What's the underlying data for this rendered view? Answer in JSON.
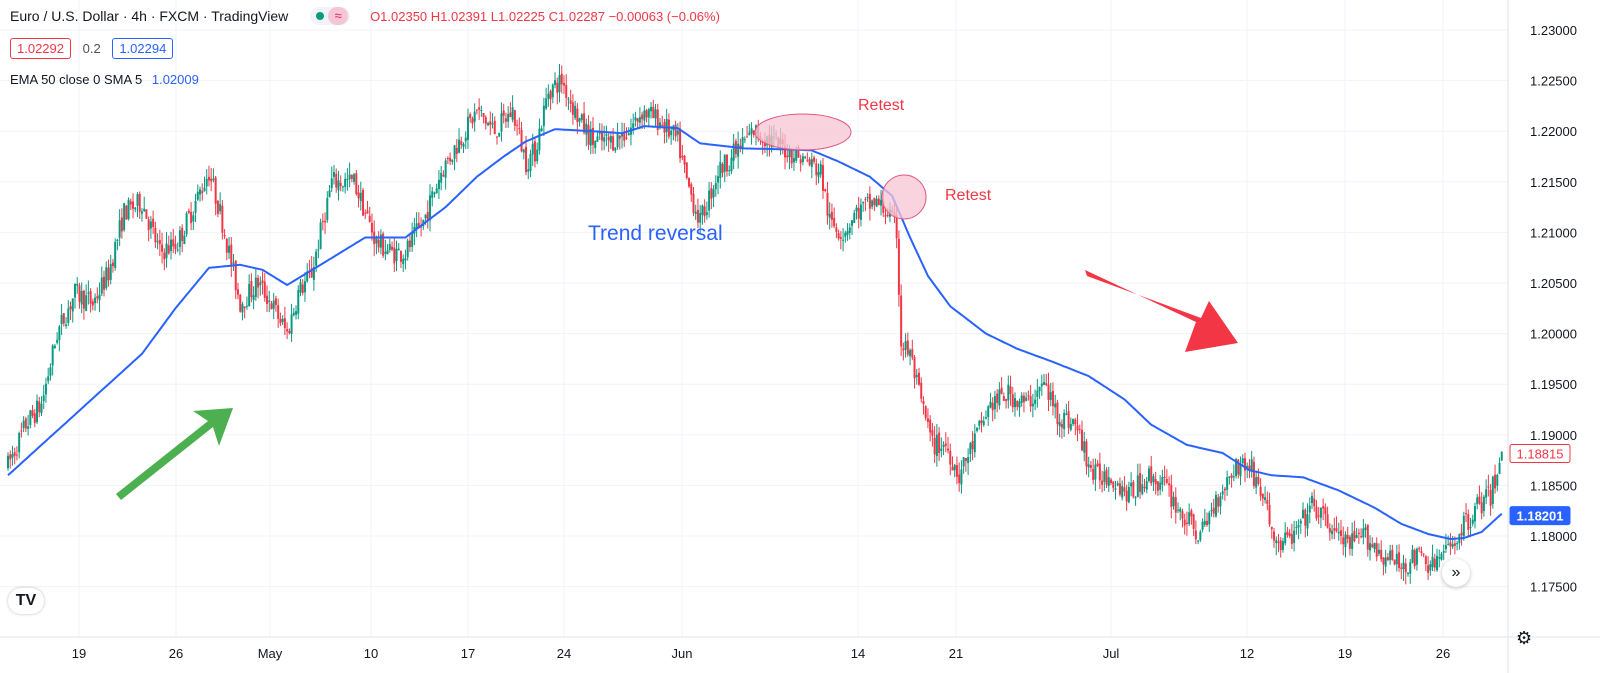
{
  "header": {
    "title": "Euro / U.S. Dollar · 4h · FXCM · TradingView",
    "ohlc": "O1.02350 H1.02391 L1.02225 C1.02287 −0.00063 (−0.06%)",
    "sell_price": "1.02292",
    "spread": "0.2",
    "buy_price": "1.02294",
    "indicator_label": "EMA 50 close 0 SMA 5",
    "indicator_value": "1.02009",
    "wave_icon": "≈"
  },
  "icons": {
    "logo": "TV",
    "go_to_realtime": "»",
    "settings": "⚙"
  },
  "colors": {
    "up": "#089981",
    "down": "#f23645",
    "ema": "#2962ff",
    "green_arrow": "#4caf50",
    "red_arrow": "#f23645",
    "highlight": "#f7c6d4",
    "annotation_red": "#f23645",
    "annotation_blue": "#2962ff"
  },
  "chart_data": {
    "type": "candlestick",
    "ylim": [
      1.172,
      1.232
    ],
    "y_ticks": [
      "1.23000",
      "1.22500",
      "1.22000",
      "1.21500",
      "1.21000",
      "1.20500",
      "1.20000",
      "1.19500",
      "1.19000",
      "1.18500",
      "1.18000",
      "1.17500"
    ],
    "x_ticks": [
      "19",
      "26",
      "May",
      "10",
      "17",
      "24",
      "Jun",
      "14",
      "21",
      "Jul",
      "12",
      "19",
      "26"
    ],
    "price_labels": [
      {
        "label": "1.18815",
        "value": 1.18815,
        "style": "outline"
      },
      {
        "label": "1.18201",
        "value": 1.18201,
        "style": "filled"
      }
    ],
    "annotations": [
      {
        "text": "Retest",
        "color": "#f23645"
      },
      {
        "text": "Retest",
        "color": "#f23645"
      },
      {
        "text": "Trend reversal",
        "color": "#2962ff"
      }
    ],
    "close_anchors": [
      [
        0,
        1.187
      ],
      [
        8,
        1.191
      ],
      [
        15,
        1.193
      ],
      [
        22,
        1.2
      ],
      [
        30,
        1.204
      ],
      [
        38,
        1.203
      ],
      [
        45,
        1.206
      ],
      [
        52,
        1.212
      ],
      [
        60,
        1.213
      ],
      [
        68,
        1.208
      ],
      [
        76,
        1.209
      ],
      [
        84,
        1.213
      ],
      [
        90,
        1.216
      ],
      [
        95,
        1.212
      ],
      [
        104,
        1.203
      ],
      [
        112,
        1.205
      ],
      [
        118,
        1.203
      ],
      [
        125,
        1.2
      ],
      [
        130,
        1.204
      ],
      [
        136,
        1.206
      ],
      [
        145,
        1.215
      ],
      [
        155,
        1.215
      ],
      [
        165,
        1.209
      ],
      [
        172,
        1.208
      ],
      [
        178,
        1.208
      ],
      [
        186,
        1.211
      ],
      [
        194,
        1.216
      ],
      [
        202,
        1.219
      ],
      [
        210,
        1.222
      ],
      [
        218,
        1.22
      ],
      [
        226,
        1.222
      ],
      [
        232,
        1.217
      ],
      [
        236,
        1.218
      ],
      [
        242,
        1.224
      ],
      [
        248,
        1.225
      ],
      [
        256,
        1.221
      ],
      [
        262,
        1.219
      ],
      [
        270,
        1.219
      ],
      [
        278,
        1.22
      ],
      [
        284,
        1.222
      ],
      [
        292,
        1.221
      ],
      [
        300,
        1.219
      ],
      [
        304,
        1.215
      ],
      [
        310,
        1.211
      ],
      [
        318,
        1.216
      ],
      [
        326,
        1.218
      ],
      [
        334,
        1.22
      ],
      [
        342,
        1.219
      ],
      [
        350,
        1.218
      ],
      [
        358,
        1.217
      ],
      [
        364,
        1.216
      ],
      [
        368,
        1.211
      ],
      [
        374,
        1.21
      ],
      [
        380,
        1.212
      ],
      [
        388,
        1.213
      ],
      [
        394,
        1.212
      ],
      [
        398,
        1.21
      ],
      [
        400,
        1.199
      ],
      [
        404,
        1.198
      ],
      [
        408,
        1.194
      ],
      [
        414,
        1.189
      ],
      [
        420,
        1.189
      ],
      [
        426,
        1.186
      ],
      [
        432,
        1.189
      ],
      [
        440,
        1.193
      ],
      [
        448,
        1.194
      ],
      [
        456,
        1.193
      ],
      [
        464,
        1.195
      ],
      [
        470,
        1.192
      ],
      [
        478,
        1.191
      ],
      [
        486,
        1.186
      ],
      [
        494,
        1.186
      ],
      [
        502,
        1.184
      ],
      [
        510,
        1.186
      ],
      [
        518,
        1.185
      ],
      [
        526,
        1.182
      ],
      [
        534,
        1.18
      ],
      [
        542,
        1.184
      ],
      [
        550,
        1.187
      ],
      [
        556,
        1.187
      ],
      [
        562,
        1.184
      ],
      [
        568,
        1.179
      ],
      [
        576,
        1.18
      ],
      [
        584,
        1.183
      ],
      [
        592,
        1.181
      ],
      [
        600,
        1.179
      ],
      [
        608,
        1.18
      ],
      [
        616,
        1.178
      ],
      [
        624,
        1.177
      ],
      [
        632,
        1.178
      ],
      [
        638,
        1.177
      ],
      [
        646,
        1.179
      ],
      [
        652,
        1.181
      ],
      [
        658,
        1.183
      ],
      [
        664,
        1.184
      ],
      [
        669,
        1.188
      ]
    ],
    "ema_anchors": [
      [
        0,
        1.186
      ],
      [
        20,
        1.19
      ],
      [
        40,
        1.194
      ],
      [
        60,
        1.198
      ],
      [
        75,
        1.2025
      ],
      [
        90,
        1.2065
      ],
      [
        104,
        1.2068
      ],
      [
        114,
        1.2063
      ],
      [
        125,
        1.2048
      ],
      [
        140,
        1.2068
      ],
      [
        160,
        1.2095
      ],
      [
        178,
        1.2095
      ],
      [
        196,
        1.2125
      ],
      [
        210,
        1.2155
      ],
      [
        222,
        1.2175
      ],
      [
        232,
        1.219
      ],
      [
        245,
        1.2202
      ],
      [
        262,
        1.22
      ],
      [
        275,
        1.2198
      ],
      [
        285,
        1.2205
      ],
      [
        300,
        1.2203
      ],
      [
        310,
        1.2188
      ],
      [
        330,
        1.2183
      ],
      [
        350,
        1.2182
      ],
      [
        360,
        1.2181
      ],
      [
        372,
        1.217
      ],
      [
        386,
        1.2155
      ],
      [
        396,
        1.2136
      ],
      [
        404,
        1.2095
      ],
      [
        412,
        1.2057
      ],
      [
        422,
        1.2027
      ],
      [
        438,
        1.2
      ],
      [
        452,
        1.1985
      ],
      [
        468,
        1.1972
      ],
      [
        484,
        1.1958
      ],
      [
        500,
        1.1935
      ],
      [
        512,
        1.191
      ],
      [
        528,
        1.189
      ],
      [
        544,
        1.1882
      ],
      [
        556,
        1.1865
      ],
      [
        566,
        1.186
      ],
      [
        580,
        1.1858
      ],
      [
        596,
        1.1845
      ],
      [
        612,
        1.1828
      ],
      [
        624,
        1.1812
      ],
      [
        636,
        1.1802
      ],
      [
        646,
        1.1797
      ],
      [
        652,
        1.1798
      ],
      [
        660,
        1.1804
      ],
      [
        669,
        1.1822
      ]
    ]
  }
}
